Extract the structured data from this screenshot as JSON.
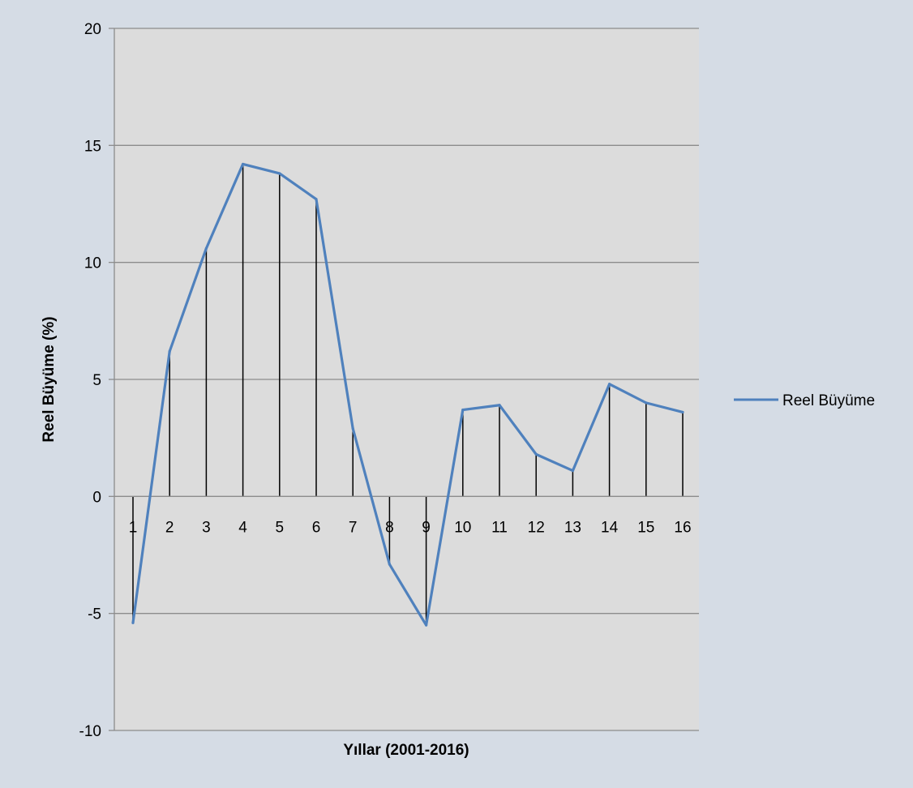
{
  "chart_data": {
    "type": "line",
    "title": "",
    "xlabel": "Yıllar (2001-2016)",
    "ylabel": "Reel Büyüme (%)",
    "ylim": [
      -10,
      20
    ],
    "yticks": [
      20,
      15,
      10,
      5,
      0,
      -5,
      -10
    ],
    "ytick_labels": [
      "20",
      "15",
      "10",
      "5",
      "0",
      "-5",
      "-10"
    ],
    "categories": [
      "1",
      "2",
      "3",
      "4",
      "5",
      "6",
      "7",
      "8",
      "9",
      "10",
      "11",
      "12",
      "13",
      "14",
      "15",
      "16"
    ],
    "series": [
      {
        "name": "Reel Büyüme",
        "color": "#4f81bd",
        "values": [
          -5.4,
          6.2,
          10.6,
          14.2,
          13.8,
          12.7,
          2.9,
          -2.9,
          -5.5,
          3.7,
          3.9,
          1.8,
          1.1,
          4.8,
          4.0,
          3.6
        ]
      }
    ],
    "drop_lines": true,
    "grid": true,
    "legend": "right"
  }
}
